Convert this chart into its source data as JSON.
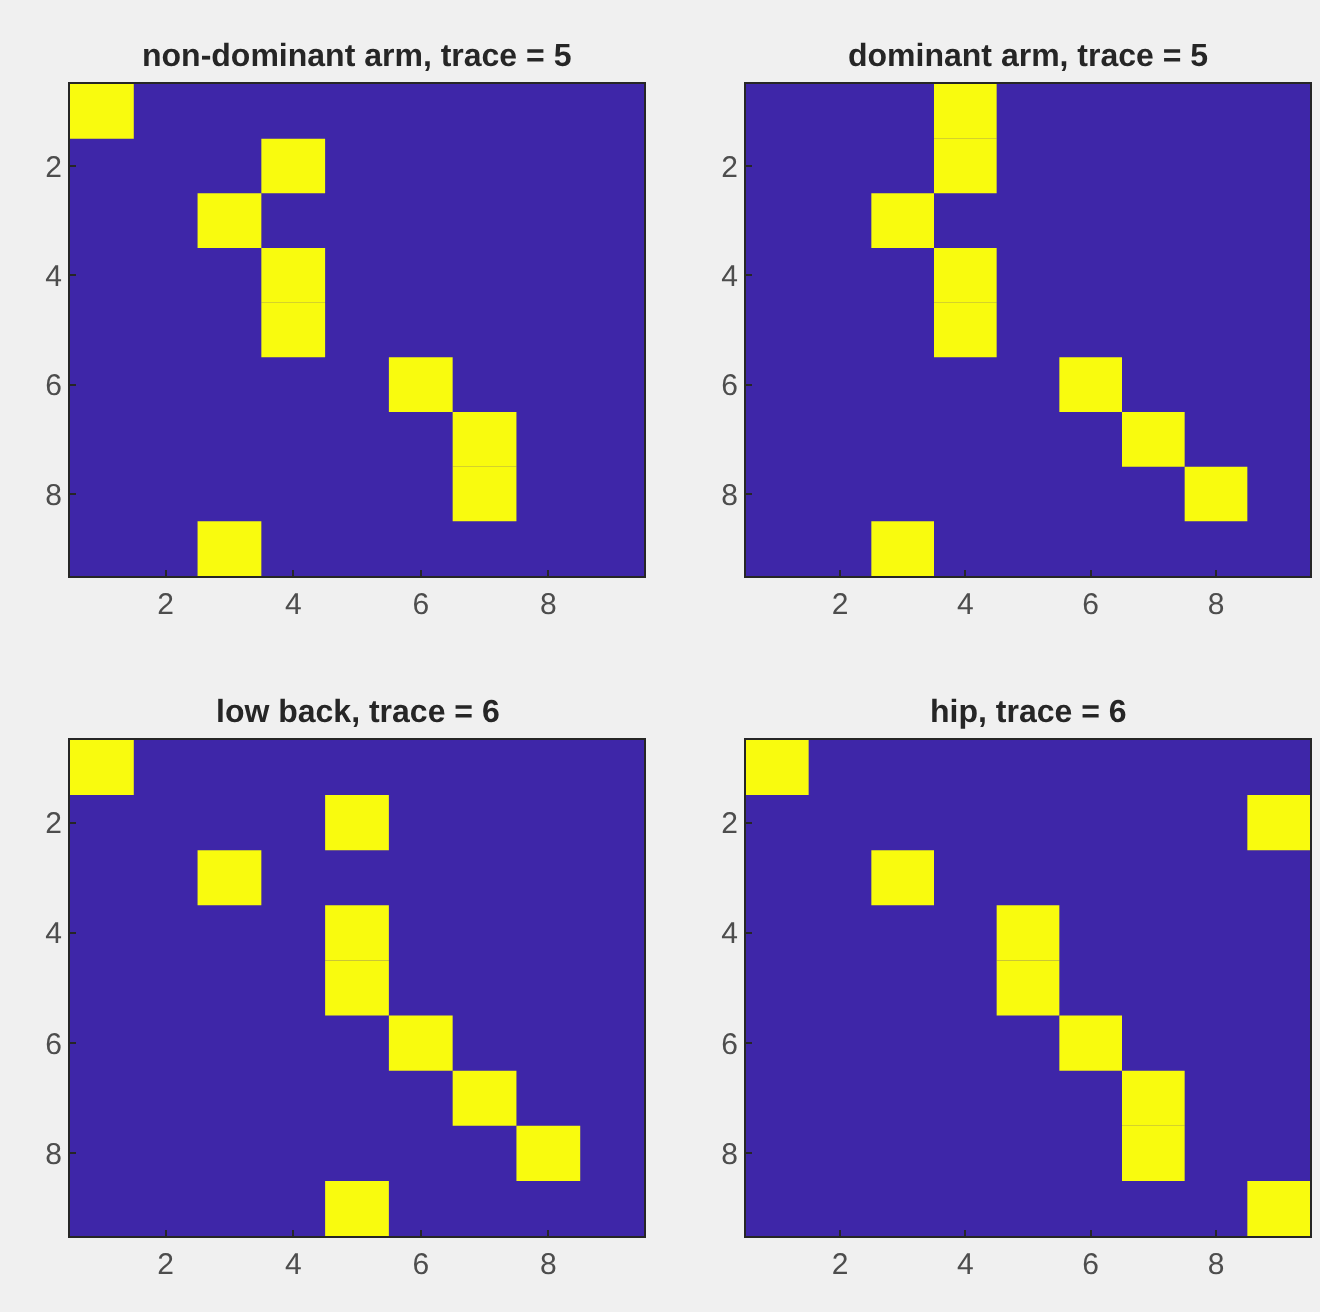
{
  "chart_data": [
    {
      "type": "scatter",
      "title": "non-dominant arm, trace = 5",
      "marker": "square",
      "xlim": [
        0.5,
        9.5
      ],
      "xticks": [
        2,
        4,
        6,
        8
      ],
      "ylim": [
        9.5,
        0.5
      ],
      "yticks": [
        2,
        4,
        6,
        8
      ],
      "series": [
        {
          "color": "#f9fb0e",
          "x": [
            1,
            4,
            3,
            4,
            4,
            6,
            7,
            7,
            3
          ],
          "values": [
            1,
            2,
            3,
            4,
            5,
            6,
            7,
            8,
            9
          ]
        }
      ]
    },
    {
      "type": "scatter",
      "title": "dominant arm, trace = 5",
      "marker": "square",
      "xlim": [
        0.5,
        9.5
      ],
      "xticks": [
        2,
        4,
        6,
        8
      ],
      "ylim": [
        9.5,
        0.5
      ],
      "yticks": [
        2,
        4,
        6,
        8
      ],
      "series": [
        {
          "color": "#f9fb0e",
          "x": [
            4,
            4,
            3,
            4,
            4,
            6,
            7,
            8,
            3
          ],
          "values": [
            1,
            2,
            3,
            4,
            5,
            6,
            7,
            8,
            9
          ]
        }
      ]
    },
    {
      "type": "scatter",
      "title": "low back, trace = 6",
      "marker": "square",
      "xlim": [
        0.5,
        9.5
      ],
      "xticks": [
        2,
        4,
        6,
        8
      ],
      "ylim": [
        9.5,
        0.5
      ],
      "yticks": [
        2,
        4,
        6,
        8
      ],
      "series": [
        {
          "color": "#f9fb0e",
          "x": [
            1,
            5,
            3,
            5,
            5,
            6,
            7,
            8,
            5
          ],
          "values": [
            1,
            2,
            3,
            4,
            5,
            6,
            7,
            8,
            9
          ]
        }
      ]
    },
    {
      "type": "scatter",
      "title": "hip, trace = 6",
      "marker": "square",
      "xlim": [
        0.5,
        9.5
      ],
      "xticks": [
        2,
        4,
        6,
        8
      ],
      "ylim": [
        9.5,
        0.5
      ],
      "yticks": [
        2,
        4,
        6,
        8
      ],
      "series": [
        {
          "color": "#f9fb0e",
          "x": [
            1,
            9,
            3,
            5,
            5,
            6,
            7,
            7,
            9
          ],
          "values": [
            1,
            2,
            3,
            4,
            5,
            6,
            7,
            8,
            9
          ]
        }
      ]
    }
  ]
}
